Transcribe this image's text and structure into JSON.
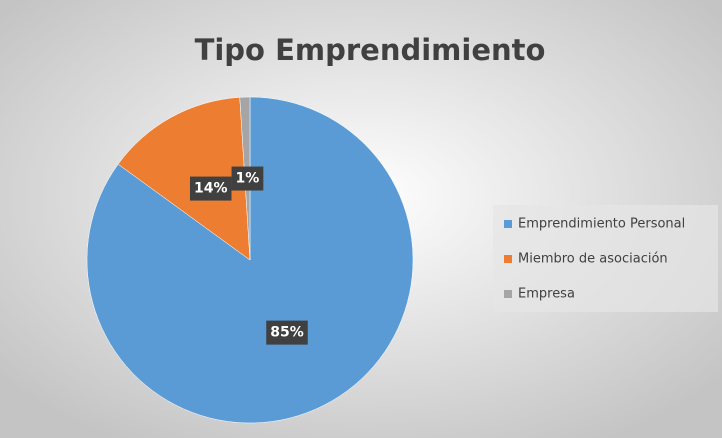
{
  "chart_data": {
    "type": "pie",
    "title": "Tipo Emprendimiento",
    "categories": [
      "Emprendimiento Personal",
      "Miembro de asociación",
      "Empresa"
    ],
    "values": [
      85,
      14,
      1
    ],
    "value_labels": [
      "85%",
      "14%",
      "1%"
    ],
    "colors": [
      "#5b9bd5",
      "#ed7d31",
      "#a5a5a5"
    ],
    "legend": "right"
  }
}
